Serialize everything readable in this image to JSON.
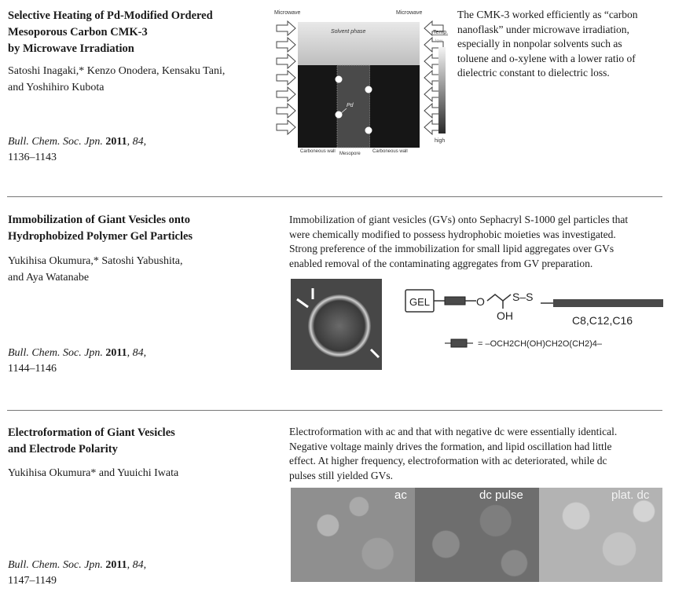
{
  "articles": [
    {
      "title_lines": [
        "Selective Heating of Pd-Modified Ordered",
        "Mesoporous Carbon CMK-3",
        "by Microwave Irradiation"
      ],
      "authors_lines": [
        "Satoshi Inagaki,* Kenzo Onodera, Kensaku Tani,",
        "and Yoshihiro Kubota"
      ],
      "journal": "Bull. Chem. Soc. Jpn.",
      "year": "2011",
      "volume": "84",
      "pages": "1136–1143",
      "abstract_lines": [
        "The CMK-3 worked efficiently as “carbon",
        "nanoflask” under microwave irradiation,",
        "especially in nonpolar solvents such as",
        "toluene and o-xylene with a lower ratio of",
        "dielectric constant to dielectric loss."
      ],
      "figure": {
        "microwave_left": "Microwave",
        "microwave_right": "Microwave",
        "solvent_phase": "Solvent phase",
        "temp": "Temp.",
        "low": "low",
        "high": "high",
        "pd": "Pd",
        "carbon_wall_left": "Carboneous wall",
        "mesopore": "Mesopore",
        "carbon_wall_right": "Carboneous wall"
      }
    },
    {
      "title_lines": [
        "Immobilization of Giant Vesicles onto",
        "Hydrophobized Polymer Gel Particles"
      ],
      "authors_lines": [
        "Yukihisa Okumura,* Satoshi Yabushita,",
        "and Aya Watanabe"
      ],
      "journal": "Bull. Chem. Soc. Jpn.",
      "year": "2011",
      "volume": "84",
      "pages": "1144–1146",
      "abstract_lines": [
        "Immobilization of giant vesicles (GVs) onto Sephacryl S-1000 gel particles that",
        "were chemically modified to possess hydrophobic moieties was investigated.",
        "Strong preference of the immobilization for small lipid aggregates over GVs",
        "enabled removal of the contaminating aggregates from GV preparation."
      ],
      "figure": {
        "gel": "GEL",
        "o": "O",
        "oh": "OH",
        "ss": "S–S",
        "chains": "C8,C12,C16",
        "linker": "= –OCH2CH(OH)CH2O(CH2)4–"
      }
    },
    {
      "title_lines": [
        "Electroformation of Giant Vesicles",
        "and Electrode Polarity"
      ],
      "authors_lines": [
        "Yukihisa Okumura* and Yuuichi Iwata"
      ],
      "journal": "Bull. Chem. Soc. Jpn.",
      "year": "2011",
      "volume": "84",
      "pages": "1147–1149",
      "abstract_lines": [
        "Electroformation with ac and that with negative dc were essentially identical.",
        "Negative voltage mainly drives the formation, and lipid oscillation had little",
        "effect. At higher frequency, electroformation with ac deteriorated, while dc",
        "pulses still yielded GVs."
      ],
      "figure": {
        "panels": [
          "ac",
          "dc pulse",
          "plat. dc"
        ]
      }
    }
  ]
}
